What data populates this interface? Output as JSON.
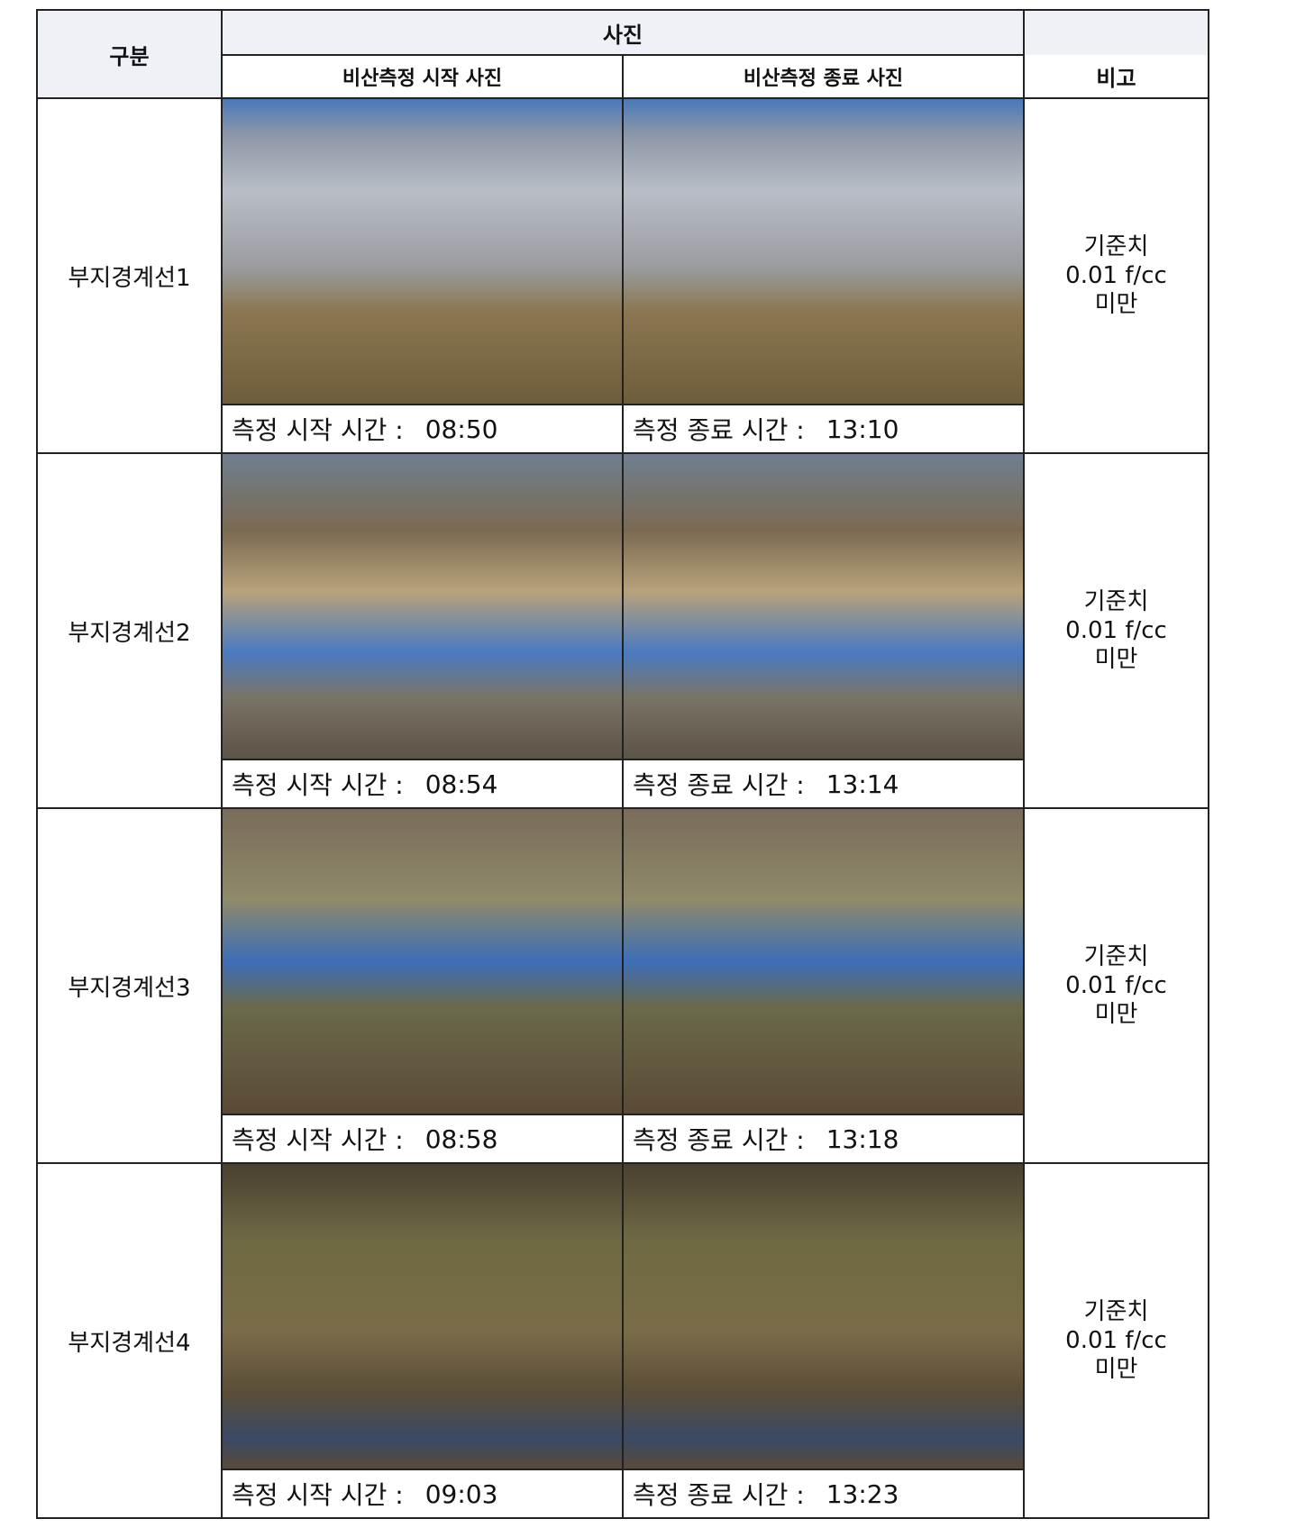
{
  "header": {
    "category": "구분",
    "photos": "사진",
    "start_photo": "비산측정 시작 사진",
    "end_photo": "비산측정 종료 사진",
    "remarks": "비고"
  },
  "rows": [
    {
      "label": "부지경계선1",
      "start_caption": "측정 시작 시간  :",
      "start_time": "08:50",
      "end_caption": "측정 종료 시간  :",
      "end_time": "13:10",
      "remark": [
        "기준치",
        "0.01 f/cc",
        "미만"
      ]
    },
    {
      "label": "부지경계선2",
      "start_caption": "측정 시작 시간  :",
      "start_time": "08:54",
      "end_caption": "측정 종료 시간  :",
      "end_time": "13:14",
      "remark": [
        "기준치",
        "0.01 f/cc",
        "미만"
      ]
    },
    {
      "label": "부지경계선3",
      "start_caption": "측정 시작 시간  :",
      "start_time": "08:58",
      "end_caption": "측정 종료 시간  :",
      "end_time": "13:18",
      "remark": [
        "기준치",
        "0.01 f/cc",
        "미만"
      ]
    },
    {
      "label": "부지경계선4",
      "start_caption": "측정 시작 시간  :",
      "start_time": "09:03",
      "end_caption": "측정 종료 시간  :",
      "end_time": "13:23",
      "remark": [
        "기준치",
        "0.01 f/cc",
        "미만"
      ]
    }
  ]
}
